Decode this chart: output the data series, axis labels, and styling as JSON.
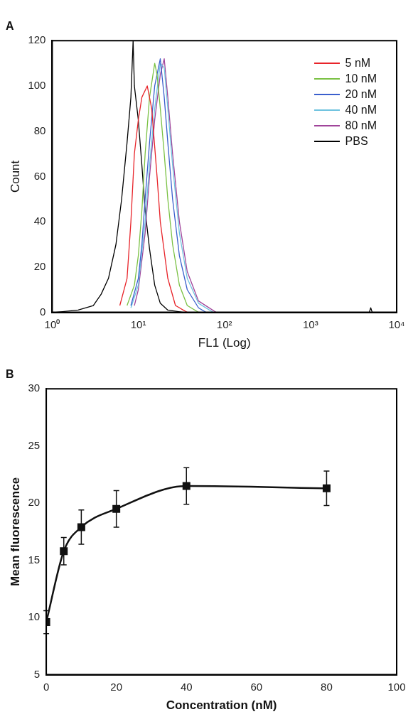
{
  "chart_data": [
    {
      "type": "line",
      "title": "A",
      "xlabel": "FL1 (Log)",
      "ylabel": "Count",
      "log": "x",
      "xlim": [
        1,
        10000
      ],
      "xticks": [
        {
          "value": 1,
          "label": "10⁰"
        },
        {
          "value": 10,
          "label": "10¹"
        },
        {
          "value": 100,
          "label": "10²"
        },
        {
          "value": 1000,
          "label": "10³"
        },
        {
          "value": 10000,
          "label": "10⁴"
        }
      ],
      "ylim": [
        0,
        120
      ],
      "yticks": [
        0,
        20,
        40,
        60,
        80,
        100,
        120
      ],
      "grid": false,
      "legend": "top right",
      "marker": "none",
      "line_style": "solid",
      "series": [
        {
          "name": "5 nM",
          "color": "#e8242a",
          "x": [
            6.1,
            7.4,
            8.2,
            9,
            10,
            11,
            12.7,
            14.3,
            16.5,
            18,
            22,
            27,
            37
          ],
          "values": [
            3,
            15,
            40,
            70,
            85,
            95,
            100,
            90,
            60,
            40,
            15,
            3,
            0
          ]
        },
        {
          "name": "10 nM",
          "color": "#7ac143",
          "x": [
            7.4,
            9,
            10,
            11,
            12,
            13.5,
            15.5,
            16.5,
            18,
            20,
            22,
            25,
            30,
            37,
            50
          ],
          "values": [
            3,
            12,
            25,
            45,
            70,
            95,
            110,
            105,
            90,
            70,
            50,
            30,
            12,
            3,
            0
          ]
        },
        {
          "name": "20 nM",
          "color": "#3a5fcd",
          "x": [
            8.2,
            10,
            11,
            12,
            13.5,
            15.5,
            18,
            20,
            22,
            25,
            30,
            37,
            50,
            61
          ],
          "values": [
            3,
            15,
            30,
            50,
            75,
            100,
            112,
            95,
            75,
            50,
            25,
            10,
            2,
            0
          ]
        },
        {
          "name": "40 nM",
          "color": "#6fc3df",
          "x": [
            8.2,
            10,
            12,
            13.5,
            15.5,
            18,
            20,
            22,
            25,
            30,
            37,
            50,
            74
          ],
          "values": [
            2,
            12,
            40,
            65,
            90,
            110,
            108,
            90,
            65,
            35,
            15,
            4,
            0
          ]
        },
        {
          "name": "80 nM",
          "color": "#a0449a",
          "x": [
            9,
            10,
            12,
            13.5,
            15.5,
            18,
            20,
            22,
            25,
            30,
            37,
            50,
            80
          ],
          "values": [
            3,
            10,
            35,
            60,
            85,
            105,
            112,
            95,
            70,
            40,
            18,
            5,
            0
          ]
        },
        {
          "name": "PBS",
          "color": "#000000",
          "x": [
            1.1,
            2,
            3,
            3.7,
            4.5,
            5.5,
            6.4,
            7.4,
            8.2,
            8.7,
            9,
            10,
            11,
            12,
            13.5,
            15.5,
            18,
            22,
            33,
            4800,
            5000,
            5200,
            9000
          ],
          "values": [
            0,
            1,
            3,
            8,
            15,
            30,
            50,
            75,
            95,
            120,
            100,
            85,
            65,
            45,
            28,
            12,
            4,
            1,
            0,
            0,
            2,
            0,
            0
          ]
        }
      ]
    },
    {
      "type": "line",
      "title": "B",
      "xlabel": "Concentration (nM)",
      "ylabel": "Mean fluorescence",
      "x": [
        0,
        5,
        10,
        20,
        40,
        80
      ],
      "xlim": [
        0,
        100
      ],
      "xticks": [
        0,
        20,
        40,
        60,
        80,
        100
      ],
      "ylim": [
        5,
        30
      ],
      "yticks": [
        5,
        10,
        15,
        20,
        25,
        30
      ],
      "grid": false,
      "legend": false,
      "marker": "square",
      "line_style": "solid",
      "series": [
        {
          "color": "#111111",
          "values": [
            9.6,
            15.8,
            17.9,
            19.5,
            21.5,
            21.3
          ],
          "errors": [
            1,
            1.2,
            1.5,
            1.6,
            1.6,
            1.5
          ]
        }
      ]
    }
  ]
}
